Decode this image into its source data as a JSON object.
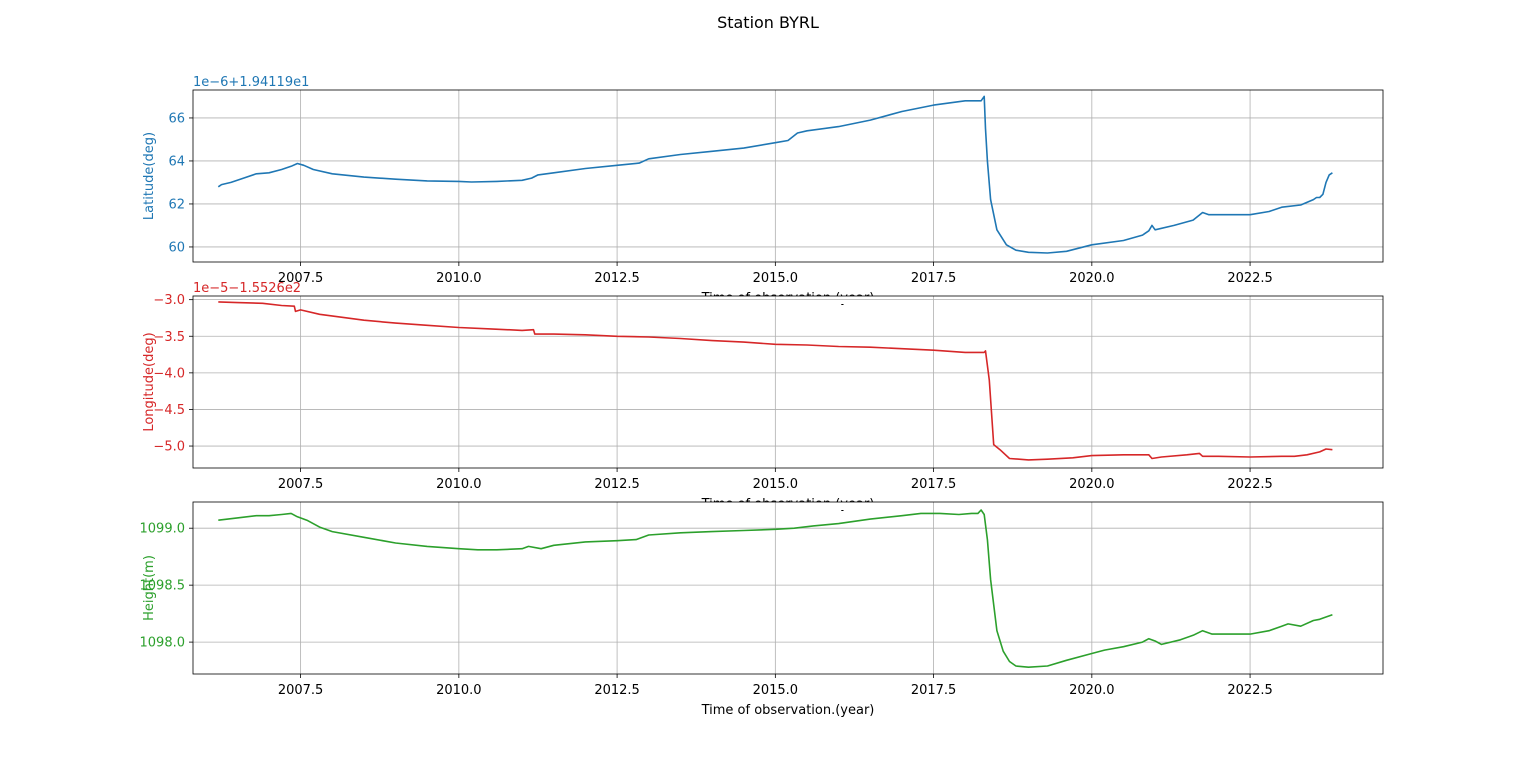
{
  "figure": {
    "title": "Station BYRL"
  },
  "chart_data": [
    {
      "type": "line",
      "ylabel": "Latitude(deg)",
      "xlabel": "Time of observation.(year)",
      "offset_label": "1e−6+1.94119e1",
      "color": "#1f77b4",
      "grid": true,
      "xlim": [
        2005.8,
        2024.6
      ],
      "ylim": [
        59.3,
        67.3
      ],
      "xticks": [
        2007.5,
        2010.0,
        2012.5,
        2015.0,
        2017.5,
        2020.0,
        2022.5
      ],
      "xtick_labels": [
        "2007.5",
        "2010.0",
        "2012.5",
        "2015.0",
        "2017.5",
        "2020.0",
        "2022.5"
      ],
      "yticks": [
        60,
        62,
        64,
        66
      ],
      "ytick_labels": [
        "60",
        "62",
        "64",
        "66"
      ],
      "series": [
        {
          "x": [
            2006.2,
            2006.25,
            2006.4,
            2006.6,
            2006.8,
            2007.0,
            2007.2,
            2007.35,
            2007.45,
            2007.55,
            2007.7,
            2008.0,
            2008.5,
            2009.0,
            2009.5,
            2010.0,
            2010.2,
            2010.6,
            2011.0,
            2011.15,
            2011.25,
            2011.5,
            2012.0,
            2012.5,
            2012.85,
            2013.0,
            2013.5,
            2014.0,
            2014.5,
            2015.0,
            2015.2,
            2015.35,
            2015.5,
            2016.0,
            2016.5,
            2017.0,
            2017.5,
            2018.0,
            2018.25,
            2018.3,
            2018.32,
            2018.35,
            2018.4,
            2018.5,
            2018.65,
            2018.8,
            2019.0,
            2019.3,
            2019.6,
            2020.0,
            2020.5,
            2020.8,
            2020.9,
            2020.95,
            2021.0,
            2021.3,
            2021.6,
            2021.75,
            2021.85,
            2022.0,
            2022.5,
            2022.8,
            2023.0,
            2023.3,
            2023.5,
            2023.55,
            2023.6,
            2023.65,
            2023.7,
            2023.75,
            2023.8
          ],
          "y": [
            62.8,
            62.9,
            63.0,
            63.2,
            63.4,
            63.45,
            63.6,
            63.75,
            63.88,
            63.8,
            63.6,
            63.4,
            63.25,
            63.15,
            63.07,
            63.05,
            63.02,
            63.05,
            63.1,
            63.2,
            63.35,
            63.45,
            63.65,
            63.8,
            63.9,
            64.1,
            64.3,
            64.45,
            64.6,
            64.85,
            64.95,
            65.3,
            65.4,
            65.6,
            65.9,
            66.3,
            66.6,
            66.8,
            66.8,
            67.0,
            65.5,
            64.0,
            62.2,
            60.8,
            60.1,
            59.85,
            59.75,
            59.72,
            59.8,
            60.1,
            60.3,
            60.55,
            60.75,
            61.0,
            60.8,
            61.0,
            61.25,
            61.6,
            61.5,
            61.5,
            61.5,
            61.65,
            61.85,
            61.95,
            62.2,
            62.3,
            62.3,
            62.45,
            63.0,
            63.35,
            63.45
          ]
        }
      ]
    },
    {
      "type": "line",
      "ylabel": "Longitude(deg)",
      "xlabel": "Time of observation.(year)",
      "offset_label": "1e−5−1.5526e2",
      "color": "#d62728",
      "grid": true,
      "xlim": [
        2005.8,
        2024.6
      ],
      "ylim": [
        -5.3,
        -2.95
      ],
      "xticks": [
        2007.5,
        2010.0,
        2012.5,
        2015.0,
        2017.5,
        2020.0,
        2022.5
      ],
      "xtick_labels": [
        "2007.5",
        "2010.0",
        "2012.5",
        "2015.0",
        "2017.5",
        "2020.0",
        "2022.5"
      ],
      "yticks": [
        -5.0,
        -4.5,
        -4.0,
        -3.5,
        -3.0
      ],
      "ytick_labels": [
        "−5.0",
        "−4.5",
        "−4.0",
        "−3.5",
        "−3.0"
      ],
      "series": [
        {
          "x": [
            2006.2,
            2006.5,
            2006.9,
            2007.2,
            2007.4,
            2007.42,
            2007.5,
            2007.8,
            2008.5,
            2009.0,
            2009.5,
            2010.0,
            2010.5,
            2011.0,
            2011.18,
            2011.2,
            2011.5,
            2012.0,
            2012.5,
            2013.0,
            2013.5,
            2014.0,
            2014.5,
            2015.0,
            2015.5,
            2016.0,
            2016.5,
            2017.0,
            2017.5,
            2018.0,
            2018.3,
            2018.32,
            2018.38,
            2018.45,
            2018.55,
            2018.7,
            2019.0,
            2019.3,
            2019.7,
            2020.0,
            2020.5,
            2020.9,
            2020.95,
            2021.1,
            2021.5,
            2021.7,
            2021.75,
            2022.0,
            2022.5,
            2023.0,
            2023.2,
            2023.4,
            2023.6,
            2023.7,
            2023.8
          ],
          "y": [
            -3.03,
            -3.04,
            -3.05,
            -3.08,
            -3.09,
            -3.16,
            -3.14,
            -3.2,
            -3.28,
            -3.32,
            -3.35,
            -3.38,
            -3.4,
            -3.42,
            -3.41,
            -3.47,
            -3.47,
            -3.48,
            -3.5,
            -3.51,
            -3.53,
            -3.56,
            -3.58,
            -3.61,
            -3.62,
            -3.64,
            -3.65,
            -3.67,
            -3.69,
            -3.72,
            -3.72,
            -3.7,
            -4.1,
            -4.98,
            -5.05,
            -5.17,
            -5.19,
            -5.18,
            -5.16,
            -5.13,
            -5.12,
            -5.12,
            -5.17,
            -5.15,
            -5.12,
            -5.1,
            -5.14,
            -5.14,
            -5.15,
            -5.14,
            -5.14,
            -5.12,
            -5.08,
            -5.04,
            -5.05
          ]
        }
      ]
    },
    {
      "type": "line",
      "ylabel": "Height(m)",
      "xlabel": "Time of observation.(year)",
      "offset_label": "",
      "color": "#2ca02c",
      "grid": true,
      "xlim": [
        2005.8,
        2024.6
      ],
      "ylim": [
        1097.72,
        1099.23
      ],
      "xticks": [
        2007.5,
        2010.0,
        2012.5,
        2015.0,
        2017.5,
        2020.0,
        2022.5
      ],
      "xtick_labels": [
        "2007.5",
        "2010.0",
        "2012.5",
        "2015.0",
        "2017.5",
        "2020.0",
        "2022.5"
      ],
      "yticks": [
        1098.0,
        1098.5,
        1099.0
      ],
      "ytick_labels": [
        "1098.0",
        "1098.5",
        "1099.0"
      ],
      "series": [
        {
          "x": [
            2006.2,
            2006.5,
            2006.8,
            2007.0,
            2007.2,
            2007.35,
            2007.45,
            2007.6,
            2007.8,
            2008.0,
            2008.5,
            2009.0,
            2009.5,
            2010.0,
            2010.3,
            2010.6,
            2011.0,
            2011.1,
            2011.3,
            2011.5,
            2012.0,
            2012.5,
            2012.8,
            2013.0,
            2013.5,
            2014.0,
            2014.5,
            2015.0,
            2015.3,
            2015.6,
            2016.0,
            2016.5,
            2017.0,
            2017.3,
            2017.6,
            2017.9,
            2018.1,
            2018.2,
            2018.25,
            2018.3,
            2018.35,
            2018.4,
            2018.5,
            2018.6,
            2018.7,
            2018.8,
            2019.0,
            2019.3,
            2019.6,
            2020.0,
            2020.2,
            2020.5,
            2020.8,
            2020.9,
            2021.0,
            2021.1,
            2021.4,
            2021.6,
            2021.75,
            2021.9,
            2022.0,
            2022.5,
            2022.8,
            2023.0,
            2023.1,
            2023.3,
            2023.5,
            2023.6,
            2023.7,
            2023.8
          ],
          "y": [
            1099.07,
            1099.09,
            1099.11,
            1099.11,
            1099.12,
            1099.13,
            1099.1,
            1099.07,
            1099.01,
            1098.97,
            1098.92,
            1098.87,
            1098.84,
            1098.82,
            1098.81,
            1098.81,
            1098.82,
            1098.84,
            1098.82,
            1098.85,
            1098.88,
            1098.89,
            1098.9,
            1098.94,
            1098.96,
            1098.97,
            1098.98,
            1098.99,
            1099.0,
            1099.02,
            1099.04,
            1099.08,
            1099.11,
            1099.13,
            1099.13,
            1099.12,
            1099.13,
            1099.13,
            1099.16,
            1099.12,
            1098.9,
            1098.55,
            1098.1,
            1097.92,
            1097.83,
            1097.79,
            1097.78,
            1097.79,
            1097.84,
            1097.9,
            1097.93,
            1097.96,
            1098.0,
            1098.03,
            1098.01,
            1097.98,
            1098.02,
            1098.06,
            1098.1,
            1098.07,
            1098.07,
            1098.07,
            1098.1,
            1098.14,
            1098.16,
            1098.14,
            1098.19,
            1098.2,
            1098.22,
            1098.24
          ]
        }
      ]
    }
  ]
}
